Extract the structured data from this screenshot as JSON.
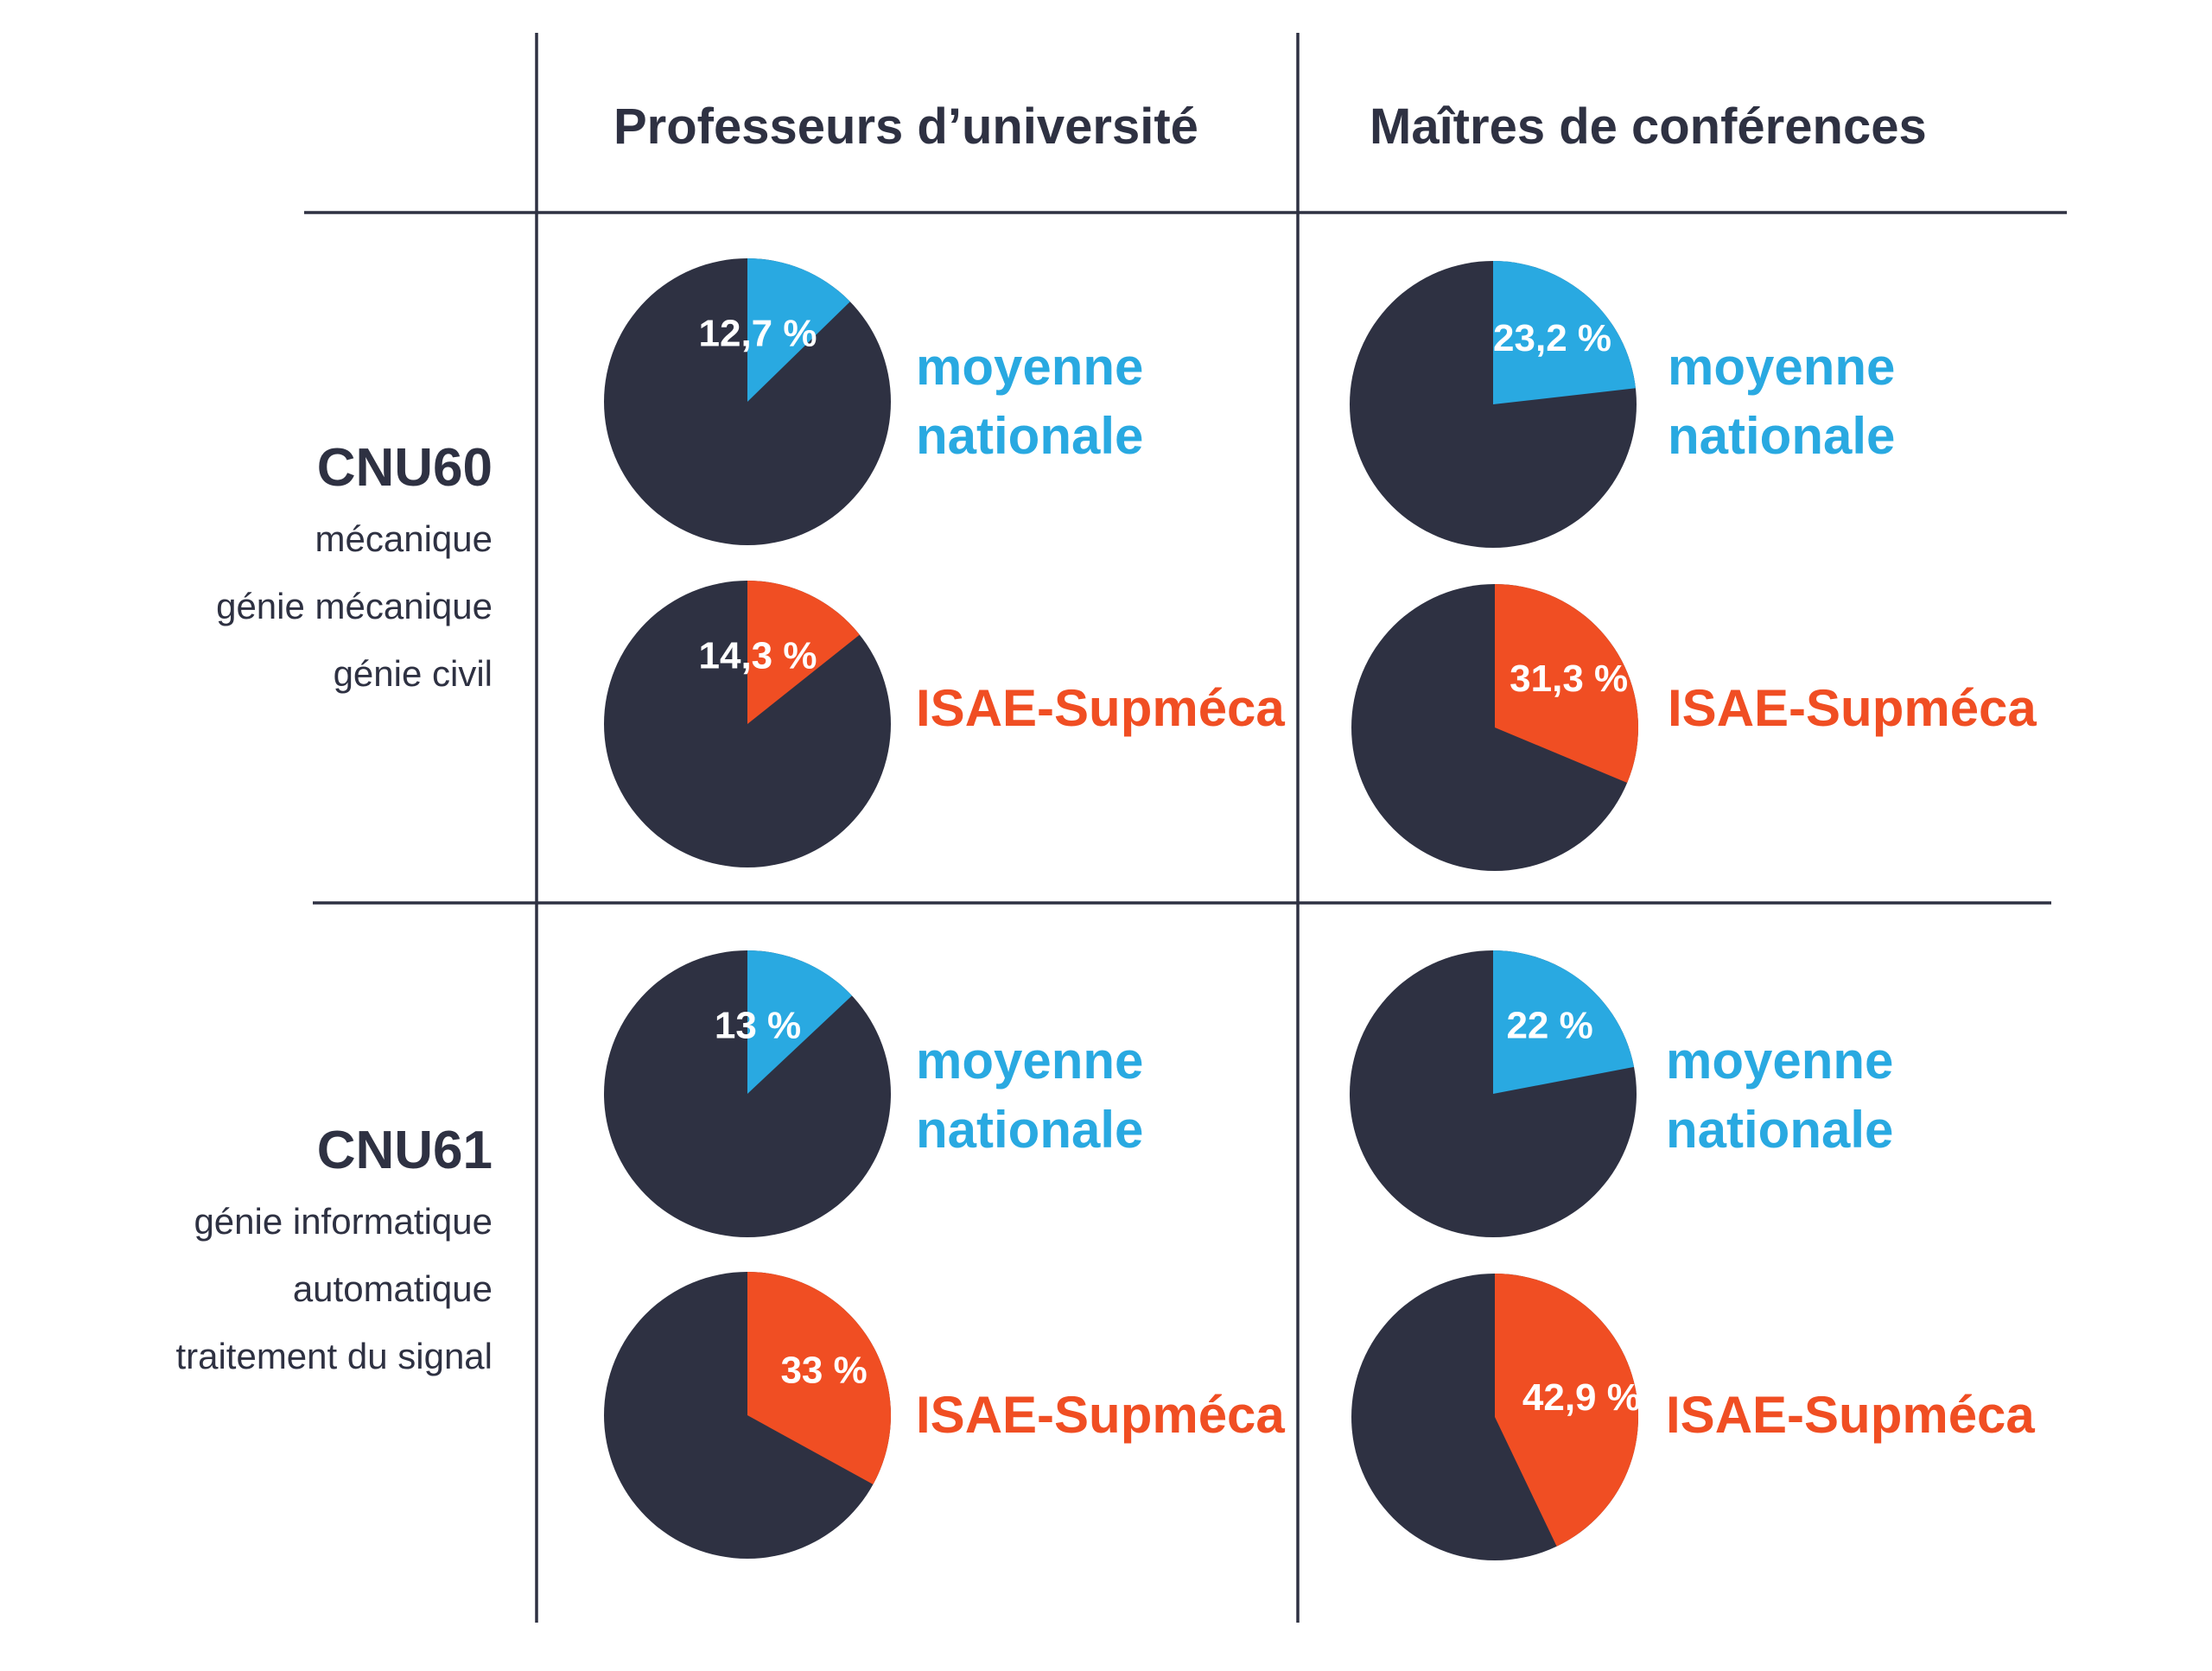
{
  "colors": {
    "dark": "#2e3142",
    "national": "#29a9e1",
    "isae": "#f04e23",
    "text": "#2e3142",
    "label": "#ffffff"
  },
  "columns": [
    {
      "label": "Professeurs d’université"
    },
    {
      "label": "Maîtres de conférences"
    }
  ],
  "rows": [
    {
      "title": "CNU60",
      "lines": [
        "mécanique",
        "génie mécanique",
        "génie civil"
      ]
    },
    {
      "title": "CNU61",
      "lines": [
        "génie informatique",
        "automatique",
        "traitement du signal"
      ]
    }
  ],
  "series_labels": {
    "national": [
      "moyenne",
      "nationale"
    ],
    "isae": [
      "ISAE-Supméca"
    ]
  },
  "chart_data": [
    {
      "type": "pie",
      "row": "CNU60",
      "column": "Professeurs d’université",
      "series": "moyenne nationale",
      "value": 12.7,
      "label": "12,7 %"
    },
    {
      "type": "pie",
      "row": "CNU60",
      "column": "Professeurs d’université",
      "series": "ISAE-Supméca",
      "value": 14.3,
      "label": "14,3 %"
    },
    {
      "type": "pie",
      "row": "CNU60",
      "column": "Maîtres de conférences",
      "series": "moyenne nationale",
      "value": 23.2,
      "label": "23,2 %"
    },
    {
      "type": "pie",
      "row": "CNU60",
      "column": "Maîtres de conférences",
      "series": "ISAE-Supméca",
      "value": 31.3,
      "label": "31,3 %"
    },
    {
      "type": "pie",
      "row": "CNU61",
      "column": "Professeurs d’université",
      "series": "moyenne nationale",
      "value": 13,
      "label": "13 %"
    },
    {
      "type": "pie",
      "row": "CNU61",
      "column": "Professeurs d’université",
      "series": "ISAE-Supméca",
      "value": 33,
      "label": "33 %"
    },
    {
      "type": "pie",
      "row": "CNU61",
      "column": "Maîtres de conférences",
      "series": "moyenne nationale",
      "value": 22,
      "label": "22 %"
    },
    {
      "type": "pie",
      "row": "CNU61",
      "column": "Maîtres de conférences",
      "series": "ISAE-Supméca",
      "value": 42.9,
      "label": "42,9 %"
    }
  ]
}
